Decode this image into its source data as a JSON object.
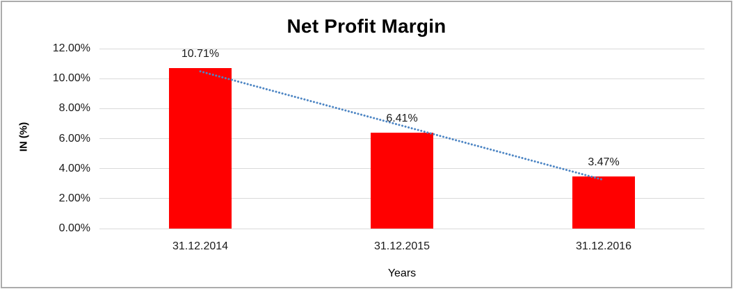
{
  "chart_data": {
    "type": "bar",
    "title": "Net Profit Margin",
    "xlabel": "Years",
    "ylabel": "IN (%)",
    "categories": [
      "31.12.2014",
      "31.12.2015",
      "31.12.2016"
    ],
    "values": [
      10.71,
      6.41,
      3.47
    ],
    "value_labels": [
      "10.71%",
      "6.41%",
      "3.47%"
    ],
    "y_ticks": [
      {
        "value": 0,
        "label": "0.00%"
      },
      {
        "value": 2,
        "label": "2.00%"
      },
      {
        "value": 4,
        "label": "4.00%"
      },
      {
        "value": 6,
        "label": "6.00%"
      },
      {
        "value": 8,
        "label": "8.00%"
      },
      {
        "value": 10,
        "label": "10.00%"
      },
      {
        "value": 12,
        "label": "12.00%"
      }
    ],
    "ylim": [
      0,
      12
    ],
    "grid": true,
    "legend_position": "none",
    "bar_color": "#ff0000",
    "gridline_color": "#d9d9d9",
    "trendline": {
      "type": "linear",
      "style": "dotted",
      "color": "#4e86c4"
    }
  }
}
